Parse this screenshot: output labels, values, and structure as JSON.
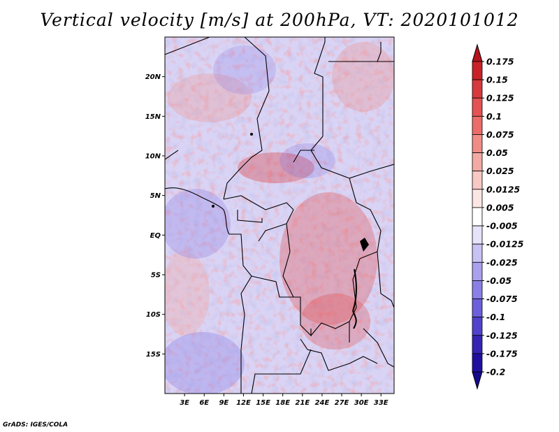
{
  "title": "Vertical velocity [m/s] at 200hPa, VT: 2020101012",
  "credit": "GrADS: IGES/COLA",
  "map": {
    "lon_ticks": [
      "3E",
      "6E",
      "9E",
      "12E",
      "15E",
      "18E",
      "21E",
      "24E",
      "27E",
      "30E",
      "33E"
    ],
    "lat_ticks": [
      "20N",
      "15N",
      "10N",
      "5N",
      "EQ",
      "5S",
      "10S",
      "15S"
    ],
    "lon_range": [
      0,
      35
    ],
    "lat_range": [
      -20,
      25
    ]
  },
  "colorbar": {
    "labels": [
      "0.175",
      "0.15",
      "0.125",
      "0.1",
      "0.075",
      "0.05",
      "0.025",
      "0.0125",
      "0.005",
      "-0.005",
      "-0.0125",
      "-0.025",
      "-0.05",
      "-0.075",
      "-0.1",
      "-0.125",
      "-0.175",
      "-0.2"
    ],
    "colors": [
      "#b4141e",
      "#c82228",
      "#d73a3c",
      "#e45253",
      "#ec6c6a",
      "#f08c86",
      "#f4aaa4",
      "#f8c8c4",
      "#fbe6e3",
      "#ffffff",
      "#e6e2fa",
      "#c8c2f4",
      "#a9a1ee",
      "#8a7fe6",
      "#6c5fdc",
      "#5042cc",
      "#3624b4",
      "#2010a0",
      "#140a8c"
    ]
  }
}
